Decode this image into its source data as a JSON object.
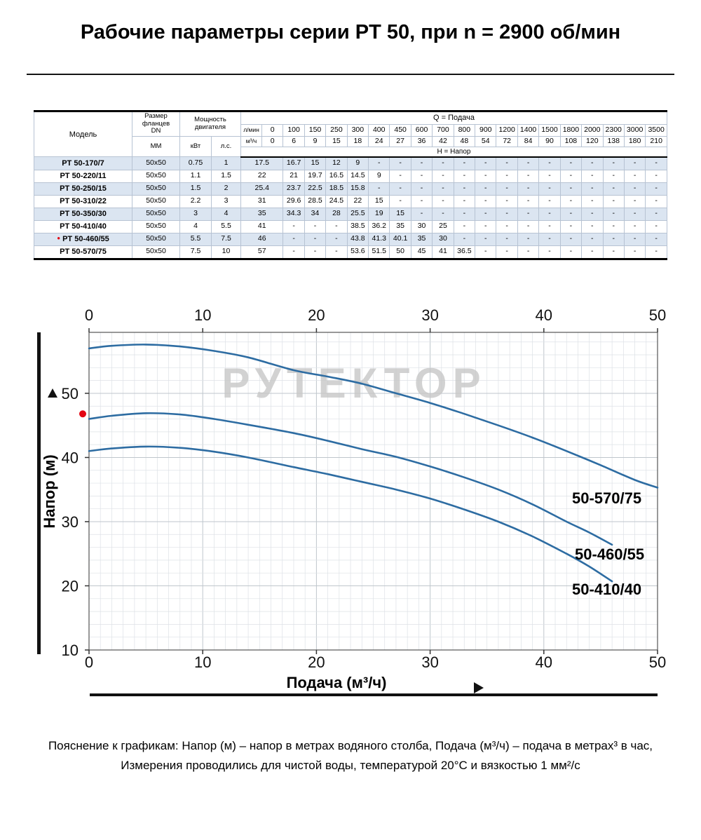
{
  "page": {
    "title": "Рабочие параметры серии PT 50, при n = 2900 об/мин",
    "footer_line1": "Пояснение к графикам: Напор (м) – напор в метрах водяного столба, Подача (м³/ч) – подача в метрах³ в час,",
    "footer_line2": "Измерения проводились для чистой воды, температурой 20°С и вязкостью 1 мм²/с"
  },
  "table": {
    "header": {
      "model": "Модель",
      "flange": "Размер фланцев\nDN",
      "flange_mm": "ММ",
      "power": "Мощность двигателя",
      "power_kw": "кВт",
      "power_hp": "л.с.",
      "q_title": "Q = Подача",
      "h_title": "H = Напор",
      "lmin_label": "л/мин",
      "m3h_label": "м³/ч",
      "lmin_values": [
        "0",
        "100",
        "150",
        "250",
        "300",
        "400",
        "450",
        "600",
        "700",
        "800",
        "900",
        "1200",
        "1400",
        "1500",
        "1800",
        "2000",
        "2300",
        "3000",
        "3500"
      ],
      "m3h_values": [
        "0",
        "6",
        "9",
        "15",
        "18",
        "24",
        "27",
        "36",
        "42",
        "48",
        "54",
        "72",
        "84",
        "90",
        "108",
        "120",
        "138",
        "180",
        "210"
      ]
    },
    "rows": [
      {
        "model": "PT 50-170/7",
        "marked": false,
        "flange": "50x50",
        "kw": "0.75",
        "hp": "1",
        "values": [
          "17.5",
          "16.7",
          "15",
          "12",
          "9",
          "-",
          "-",
          "-",
          "-",
          "-",
          "-",
          "-",
          "-",
          "-",
          "-",
          "-",
          "-",
          "-",
          "-"
        ]
      },
      {
        "model": "PT 50-220/11",
        "marked": false,
        "flange": "50x50",
        "kw": "1.1",
        "hp": "1.5",
        "values": [
          "22",
          "21",
          "19.7",
          "16.5",
          "14.5",
          "9",
          "-",
          "-",
          "-",
          "-",
          "-",
          "-",
          "-",
          "-",
          "-",
          "-",
          "-",
          "-",
          "-"
        ]
      },
      {
        "model": "PT 50-250/15",
        "marked": false,
        "flange": "50x50",
        "kw": "1.5",
        "hp": "2",
        "values": [
          "25.4",
          "23.7",
          "22.5",
          "18.5",
          "15.8",
          "-",
          "-",
          "-",
          "-",
          "-",
          "-",
          "-",
          "-",
          "-",
          "-",
          "-",
          "-",
          "-",
          "-"
        ]
      },
      {
        "model": "PT 50-310/22",
        "marked": false,
        "flange": "50x50",
        "kw": "2.2",
        "hp": "3",
        "values": [
          "31",
          "29.6",
          "28.5",
          "24.5",
          "22",
          "15",
          "-",
          "-",
          "-",
          "-",
          "-",
          "-",
          "-",
          "-",
          "-",
          "-",
          "-",
          "-",
          "-"
        ]
      },
      {
        "model": "PT 50-350/30",
        "marked": false,
        "flange": "50x50",
        "kw": "3",
        "hp": "4",
        "values": [
          "35",
          "34.3",
          "34",
          "28",
          "25.5",
          "19",
          "15",
          "-",
          "-",
          "-",
          "-",
          "-",
          "-",
          "-",
          "-",
          "-",
          "-",
          "-",
          "-"
        ]
      },
      {
        "model": "PT 50-410/40",
        "marked": false,
        "flange": "50x50",
        "kw": "4",
        "hp": "5.5",
        "values": [
          "41",
          "-",
          "-",
          "-",
          "38.5",
          "36.2",
          "35",
          "30",
          "25",
          "-",
          "-",
          "-",
          "-",
          "-",
          "-",
          "-",
          "-",
          "-",
          "-"
        ]
      },
      {
        "model": "PT 50-460/55",
        "marked": true,
        "flange": "50x50",
        "kw": "5.5",
        "hp": "7.5",
        "values": [
          "46",
          "-",
          "-",
          "-",
          "43.8",
          "41.3",
          "40.1",
          "35",
          "30",
          "-",
          "-",
          "-",
          "-",
          "-",
          "-",
          "-",
          "-",
          "-",
          "-"
        ]
      },
      {
        "model": "PT 50-570/75",
        "marked": false,
        "flange": "50x50",
        "kw": "7.5",
        "hp": "10",
        "values": [
          "57",
          "-",
          "-",
          "-",
          "53.6",
          "51.5",
          "50",
          "45",
          "41",
          "36.5",
          "-",
          "-",
          "-",
          "-",
          "-",
          "-",
          "-",
          "-",
          "-"
        ]
      }
    ]
  },
  "chart_data": {
    "type": "line",
    "title": "",
    "xlabel": "Подача (м³/ч)",
    "ylabel": "Напор (м)",
    "xlim": [
      0,
      50
    ],
    "ylim": [
      10,
      59.5
    ],
    "x_ticks": [
      0,
      10,
      20,
      30,
      40,
      50
    ],
    "y_ticks": [
      10,
      20,
      30,
      40,
      50
    ],
    "grid": true,
    "legend_position": "labels-at-line-end",
    "line_color": "#2d6ca2",
    "watermark": "РУТЕКТОР",
    "marker": {
      "x": 0,
      "y": 46.8,
      "color": "#e30613"
    },
    "series": [
      {
        "name": "50-570/75",
        "points": [
          [
            0,
            57
          ],
          [
            2,
            57.4
          ],
          [
            5,
            57.6
          ],
          [
            8,
            57.3
          ],
          [
            11,
            56.6
          ],
          [
            14,
            55.6
          ],
          [
            18,
            53.6
          ],
          [
            21,
            52.6
          ],
          [
            24,
            51.5
          ],
          [
            27,
            50
          ],
          [
            30,
            48.5
          ],
          [
            33,
            46.8
          ],
          [
            36,
            45
          ],
          [
            39,
            43.1
          ],
          [
            42,
            41
          ],
          [
            45,
            38.8
          ],
          [
            48,
            36.5
          ],
          [
            50,
            35.3
          ]
        ]
      },
      {
        "name": "50-460/55",
        "points": [
          [
            0,
            46
          ],
          [
            2,
            46.5
          ],
          [
            5,
            46.9
          ],
          [
            8,
            46.7
          ],
          [
            11,
            46
          ],
          [
            14,
            45.1
          ],
          [
            18,
            43.8
          ],
          [
            21,
            42.6
          ],
          [
            24,
            41.3
          ],
          [
            27,
            40.1
          ],
          [
            30,
            38.6
          ],
          [
            33,
            36.9
          ],
          [
            36,
            35
          ],
          [
            39,
            32.7
          ],
          [
            42,
            30
          ],
          [
            44,
            28.3
          ],
          [
            46,
            26.4
          ]
        ]
      },
      {
        "name": "50-410/40",
        "points": [
          [
            0,
            41
          ],
          [
            2,
            41.4
          ],
          [
            5,
            41.7
          ],
          [
            8,
            41.5
          ],
          [
            11,
            40.9
          ],
          [
            14,
            40
          ],
          [
            18,
            38.5
          ],
          [
            21,
            37.4
          ],
          [
            24,
            36.2
          ],
          [
            27,
            35
          ],
          [
            30,
            33.6
          ],
          [
            33,
            31.9
          ],
          [
            36,
            30
          ],
          [
            39,
            27.7
          ],
          [
            42,
            25
          ],
          [
            44,
            23
          ],
          [
            46,
            20.7
          ]
        ]
      }
    ]
  }
}
